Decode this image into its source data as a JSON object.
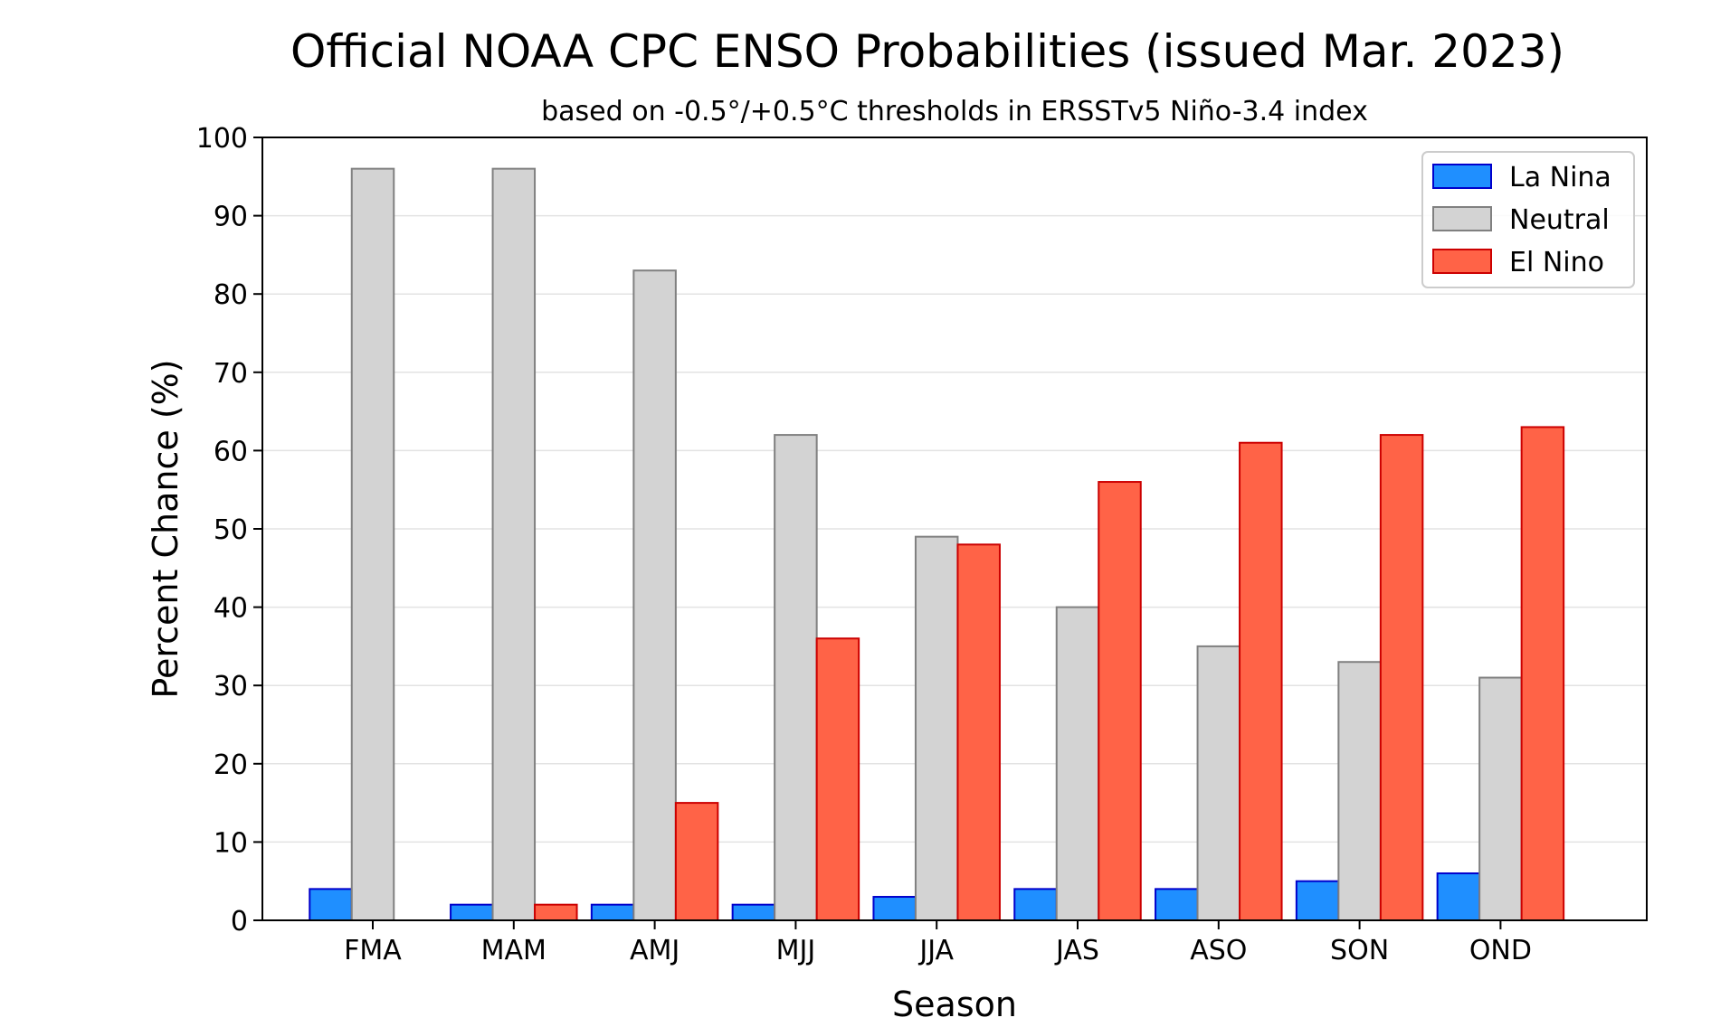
{
  "chart_data": {
    "type": "bar",
    "title": "Official NOAA CPC ENSO Probabilities (issued Mar. 2023)",
    "subtitle": "based on -0.5°/+0.5°C thresholds in ERSSTv5 Niño-3.4 index",
    "xlabel": "Season",
    "ylabel": "Percent Chance (%)",
    "ylim": [
      0,
      100
    ],
    "yticks": [
      0,
      10,
      20,
      30,
      40,
      50,
      60,
      70,
      80,
      90,
      100
    ],
    "grid": true,
    "legend_position": "top-right",
    "categories": [
      "FMA",
      "MAM",
      "AMJ",
      "MJJ",
      "JJA",
      "JAS",
      "ASO",
      "SON",
      "OND"
    ],
    "series": [
      {
        "name": "La Nina",
        "color": "#1f8fff",
        "edge": "#0000cc",
        "values": [
          4,
          2,
          2,
          2,
          3,
          4,
          4,
          5,
          6
        ]
      },
      {
        "name": "Neutral",
        "color": "#d3d3d3",
        "edge": "#808080",
        "values": [
          96,
          96,
          83,
          62,
          49,
          40,
          35,
          33,
          31
        ]
      },
      {
        "name": "El Nino",
        "color": "#ff6347",
        "edge": "#cc0000",
        "values": [
          0,
          2,
          15,
          36,
          48,
          56,
          61,
          62,
          63
        ]
      }
    ]
  }
}
